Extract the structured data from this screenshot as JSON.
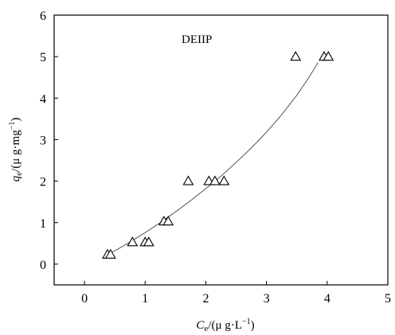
{
  "chart_data": {
    "type": "scatter",
    "annotation": "DEIIP",
    "xlabel": {
      "sym": "C",
      "sub": "e",
      "pre": "/(",
      "mu": "μ",
      "unit": " g·L",
      "sup": "−1",
      "post": ")"
    },
    "ylabel": {
      "sym": "q",
      "sub": "e",
      "pre": "/(",
      "mu": "μ",
      "unit": " g·mg",
      "sup": "−1",
      "post": ")"
    },
    "xlim": [
      -0.5,
      5
    ],
    "ylim": [
      -0.5,
      6
    ],
    "xticks": [
      0,
      1,
      2,
      3,
      4,
      5
    ],
    "yticks": [
      0,
      1,
      2,
      3,
      4,
      5,
      6
    ],
    "marker": "open-triangle",
    "grid": false,
    "series": [
      {
        "points": [
          [
            0.38,
            0.23
          ],
          [
            0.43,
            0.23
          ],
          [
            0.79,
            0.53
          ],
          [
            1.0,
            0.53
          ],
          [
            1.06,
            0.53
          ],
          [
            1.31,
            1.03
          ],
          [
            1.38,
            1.03
          ],
          [
            1.71,
            2.0
          ],
          [
            2.05,
            2.0
          ],
          [
            2.15,
            2.0
          ],
          [
            2.3,
            2.0
          ],
          [
            3.48,
            5.0
          ],
          [
            3.95,
            5.0
          ],
          [
            4.02,
            5.0
          ]
        ]
      }
    ],
    "fit_curve": {
      "x": [
        0.35,
        0.5,
        0.75,
        1.0,
        1.25,
        1.5,
        1.75,
        2.0,
        2.25,
        2.5,
        2.75,
        3.0,
        3.25,
        3.5,
        3.7,
        3.85
      ],
      "y": [
        0.22,
        0.32,
        0.53,
        0.76,
        1.0,
        1.26,
        1.53,
        1.82,
        2.12,
        2.45,
        2.8,
        3.18,
        3.6,
        4.07,
        4.5,
        4.86
      ]
    }
  }
}
